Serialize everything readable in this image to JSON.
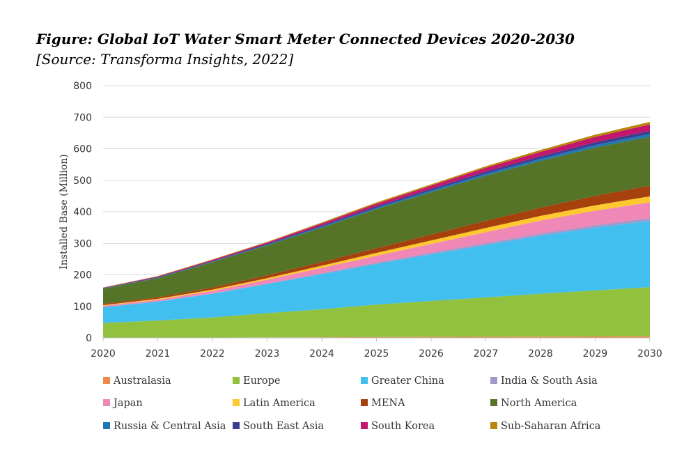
{
  "figure": {
    "title": "Figure: Global IoT Water Smart Meter Connected Devices 2020-2030",
    "source": "[Source: Transforma Insights, 2022]"
  },
  "chart_data": {
    "type": "area",
    "stacked": true,
    "title": "Figure: Global IoT Water Smart Meter Connected Devices 2020-2030",
    "xlabel": "",
    "ylabel": "Installed Base (Million)",
    "x": [
      2020,
      2021,
      2022,
      2023,
      2024,
      2025,
      2026,
      2027,
      2028,
      2029,
      2030
    ],
    "ylim": [
      0,
      800
    ],
    "yticks": [
      0,
      100,
      200,
      300,
      400,
      500,
      600,
      700,
      800
    ],
    "grid": true,
    "legend_position": "bottom",
    "series": [
      {
        "name": "Australasia",
        "color": "#f08a4b",
        "values": [
          1,
          1,
          1,
          1.5,
          2,
          2.5,
          3,
          3.5,
          4,
          4.5,
          5
        ]
      },
      {
        "name": "Europe",
        "color": "#92c13e",
        "values": [
          46,
          54,
          64,
          77,
          89,
          103,
          114,
          125,
          136,
          146,
          156
        ]
      },
      {
        "name": "Greater China",
        "color": "#41bfef",
        "values": [
          50,
          60,
          75,
          92,
          111,
          129,
          148,
          166,
          184,
          199,
          210
        ]
      },
      {
        "name": "India & South Asia",
        "color": "#a09acb",
        "values": [
          1,
          1,
          1,
          2,
          3,
          4,
          5,
          6,
          7,
          8,
          9
        ]
      },
      {
        "name": "Japan",
        "color": "#ef88b6",
        "values": [
          4,
          5,
          8,
          12,
          17,
          22,
          28,
          35,
          41,
          46,
          50
        ]
      },
      {
        "name": "Latin America",
        "color": "#fec82f",
        "values": [
          2,
          3,
          4,
          5,
          7,
          9,
          11,
          13,
          15,
          17,
          19
        ]
      },
      {
        "name": "MENA",
        "color": "#a6410e",
        "values": [
          4,
          5,
          7,
          9,
          12,
          15,
          19,
          23,
          26,
          30,
          34
        ]
      },
      {
        "name": "North America",
        "color": "#567427",
        "values": [
          48,
          61,
          80,
          95,
          109,
          124,
          134,
          143,
          148,
          153,
          155
        ]
      },
      {
        "name": "Russia & Central Asia",
        "color": "#1f78b4",
        "values": [
          1,
          1,
          2,
          2,
          3,
          4,
          5,
          6,
          7,
          8,
          9
        ]
      },
      {
        "name": "South East Asia",
        "color": "#3d3e8f",
        "values": [
          1,
          2,
          2,
          3,
          4,
          5,
          6,
          7,
          8,
          9,
          10
        ]
      },
      {
        "name": "South Korea",
        "color": "#c3166e",
        "values": [
          1,
          2,
          3,
          4,
          6,
          8,
          10,
          12,
          14,
          17,
          20
        ]
      },
      {
        "name": "Sub-Saharan Africa",
        "color": "#b8860b",
        "values": [
          1,
          1,
          2,
          2,
          3,
          4,
          4,
          5,
          6,
          7,
          8
        ]
      }
    ]
  }
}
